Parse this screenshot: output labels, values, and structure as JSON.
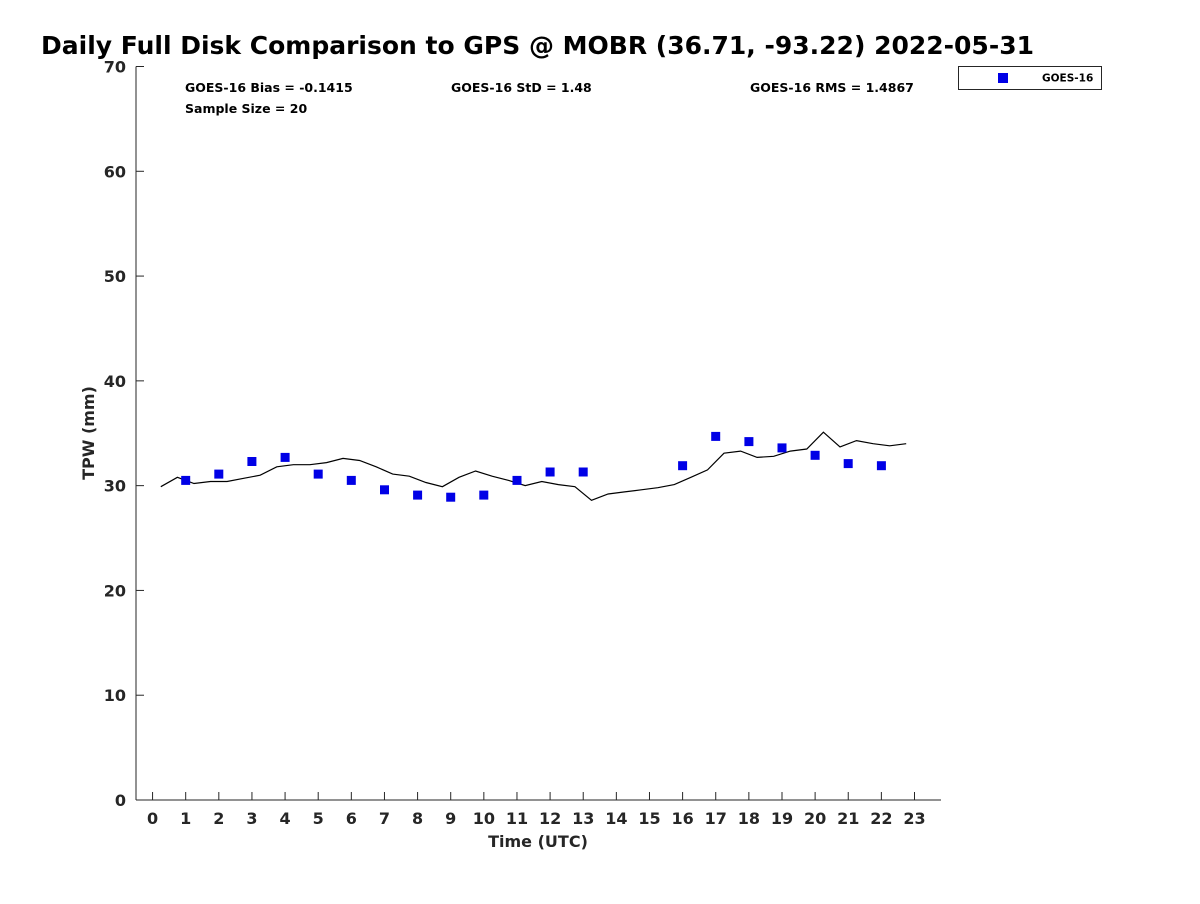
{
  "chart_data": {
    "type": "scatter",
    "title": "Daily Full Disk Comparison to GPS @ MOBR (36.71, -93.22) 2022-05-31",
    "xlabel": "Time (UTC)",
    "ylabel": "TPW (mm)",
    "xlim": [
      -0.5,
      23.8
    ],
    "ylim": [
      0,
      70
    ],
    "x_ticks": [
      0,
      1,
      2,
      3,
      4,
      5,
      6,
      7,
      8,
      9,
      10,
      11,
      12,
      13,
      14,
      15,
      16,
      17,
      18,
      19,
      20,
      21,
      22,
      23
    ],
    "x_tick_labels": [
      "0",
      "1",
      "2",
      "3",
      "4",
      "5",
      "6",
      "7",
      "8",
      "9",
      "10",
      "11",
      "12",
      "13",
      "14",
      "15",
      "16",
      "17",
      "18",
      "19",
      "20",
      "21",
      "22",
      "23"
    ],
    "y_ticks": [
      0,
      10,
      20,
      30,
      40,
      50,
      60,
      70
    ],
    "y_tick_labels": [
      "0",
      "10",
      "20",
      "30",
      "40",
      "50",
      "60",
      "70"
    ],
    "grid": false,
    "legend_position": "top-right outside",
    "stats": {
      "bias": "GOES-16 Bias = -0.1415",
      "std": "GOES-16 StD = 1.48",
      "rms": "GOES-16 RMS = 1.4867",
      "sample": "Sample Size = 20"
    },
    "series": [
      {
        "name": "GOES-16",
        "kind": "scatter",
        "marker": "square",
        "color": "#0000e6",
        "x": [
          1,
          2,
          3,
          4,
          5,
          6,
          7,
          8,
          9,
          10,
          11,
          12,
          13,
          16,
          17,
          18,
          19,
          20,
          21,
          22
        ],
        "y": [
          30.5,
          31.1,
          32.3,
          32.7,
          31.1,
          30.5,
          29.6,
          29.1,
          28.9,
          29.1,
          30.5,
          31.3,
          31.3,
          31.9,
          34.7,
          34.2,
          33.6,
          32.9,
          32.1,
          31.9
        ]
      },
      {
        "kind": "line",
        "color": "#000000",
        "x": [
          0.25,
          0.75,
          1.25,
          1.75,
          2.25,
          2.75,
          3.25,
          3.75,
          4.25,
          4.75,
          5.25,
          5.75,
          6.25,
          6.75,
          7.25,
          7.75,
          8.25,
          8.75,
          9.25,
          9.75,
          10.25,
          10.75,
          11.25,
          11.75,
          12.25,
          12.75,
          13.25,
          13.75,
          14.25,
          14.75,
          15.25,
          15.75,
          16.25,
          16.75,
          17.25,
          17.75,
          18.25,
          18.75,
          19.25,
          19.75,
          20.25,
          20.75,
          21.25,
          21.75,
          22.25,
          22.75
        ],
        "y": [
          29.9,
          30.8,
          30.2,
          30.4,
          30.4,
          30.7,
          31.0,
          31.8,
          32.0,
          32.0,
          32.2,
          32.6,
          32.4,
          31.8,
          31.1,
          30.9,
          30.3,
          29.9,
          30.8,
          31.4,
          30.9,
          30.5,
          30.0,
          30.4,
          30.1,
          29.9,
          28.6,
          29.2,
          29.4,
          29.6,
          29.8,
          30.1,
          30.8,
          31.5,
          33.1,
          33.3,
          32.7,
          32.8,
          33.3,
          33.5,
          35.1,
          33.7,
          34.3,
          34.0,
          33.8,
          34.0
        ]
      }
    ]
  }
}
